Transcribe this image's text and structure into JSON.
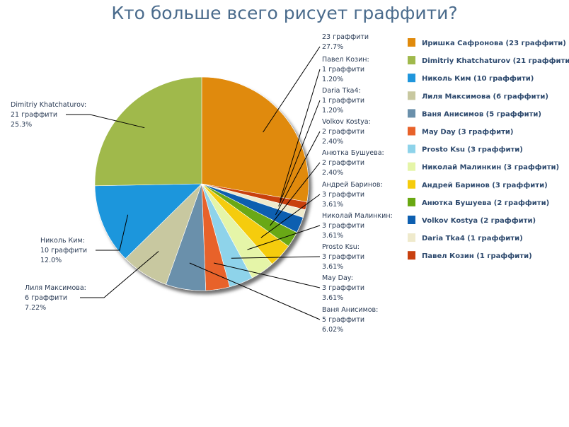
{
  "chart_data": {
    "type": "pie",
    "title": "Кто больше всего рисует граффити?",
    "slices": [
      {
        "name": "Иришка Сафронова",
        "value": 23,
        "percent": "27.7%",
        "color": "#e08a0c",
        "legend": "Иришка Сафронова (23 граффити)",
        "label": [
          "23 граффити",
          "27.7%"
        ]
      },
      {
        "name": "Павел Козин",
        "value": 1,
        "percent": "1.20%",
        "color": "#c8400f",
        "legend": "Павел Козин (1 граффити)",
        "label": [
          "Павел Козин:",
          "1 граффити",
          "1.20%"
        ]
      },
      {
        "name": "Daria Tka4",
        "value": 1,
        "percent": "1.20%",
        "color": "#efeacc",
        "legend": "Daria Tka4 (1 граффити)",
        "label": [
          "Daria Tka4:",
          "1 граффити",
          "1.20%"
        ]
      },
      {
        "name": "Volkov Kostya",
        "value": 2,
        "percent": "2.40%",
        "color": "#0d5fb0",
        "legend": "Volkov Kostya (2 граффити)",
        "label": [
          "Volkov Kostya:",
          "2 граффити",
          "2.40%"
        ]
      },
      {
        "name": "Анютка Бушуева",
        "value": 2,
        "percent": "2.40%",
        "color": "#69a812",
        "legend": "Анютка Бушуева (2 граффити)",
        "label": [
          "Анютка Бушуева:",
          "2 граффити",
          "2.40%"
        ]
      },
      {
        "name": "Андрей Баринов",
        "value": 3,
        "percent": "3.61%",
        "color": "#f5cc0c",
        "legend": "Андрей Баринов (3 граффити)",
        "label": [
          "Андрей Баринов:",
          "3 граффити",
          "3.61%"
        ]
      },
      {
        "name": "Николай Малинкин",
        "value": 3,
        "percent": "3.61%",
        "color": "#e5f5a8",
        "legend": "Николай Малинкин (3 граффити)",
        "label": [
          "Николай Малинкин:",
          "3 граффити",
          "3.61%"
        ]
      },
      {
        "name": "Prosto Ksu",
        "value": 3,
        "percent": "3.61%",
        "color": "#8ed3ea",
        "legend": "Prosto Ksu (3 граффити)",
        "label": [
          "Prosto Ksu:",
          "3 граффити",
          "3.61%"
        ]
      },
      {
        "name": "May Day",
        "value": 3,
        "percent": "3.61%",
        "color": "#e8622a",
        "legend": "May Day (3 граффити)",
        "label": [
          "May Day:",
          "3 граффити",
          "3.61%"
        ]
      },
      {
        "name": "Ваня Анисимов",
        "value": 5,
        "percent": "6.02%",
        "color": "#6a90ab",
        "legend": "Ваня Анисимов (5 граффити)",
        "label": [
          "Ваня Анисимов:",
          "5 граффити",
          "6.02%"
        ]
      },
      {
        "name": "Лиля Максимова",
        "value": 6,
        "percent": "7.22%",
        "color": "#c8c8a0",
        "legend": "Лиля Максимова (6 граффити)",
        "label": [
          "Лиля Максимова:",
          "6 граффити",
          "7.22%"
        ]
      },
      {
        "name": "Николь Ким",
        "value": 10,
        "percent": "12.0%",
        "color": "#1f96dc",
        "legend": "Николь Ким (10 граффити)",
        "label": [
          "Николь Ким:",
          "10 граффити",
          "12.0%"
        ]
      },
      {
        "name": "Dimitriy Khatchaturov",
        "value": 21,
        "percent": "25.3%",
        "color": "#a0b94c",
        "legend": "Dimitriy Khatchaturov (21 граффити)",
        "label": [
          "Dimitriy Khatchaturov:",
          "21 граффити",
          "25.3%"
        ]
      }
    ],
    "legend_order": [
      0,
      12,
      11,
      10,
      9,
      8,
      7,
      6,
      5,
      4,
      3,
      2,
      1
    ],
    "legend_placement": "right"
  }
}
